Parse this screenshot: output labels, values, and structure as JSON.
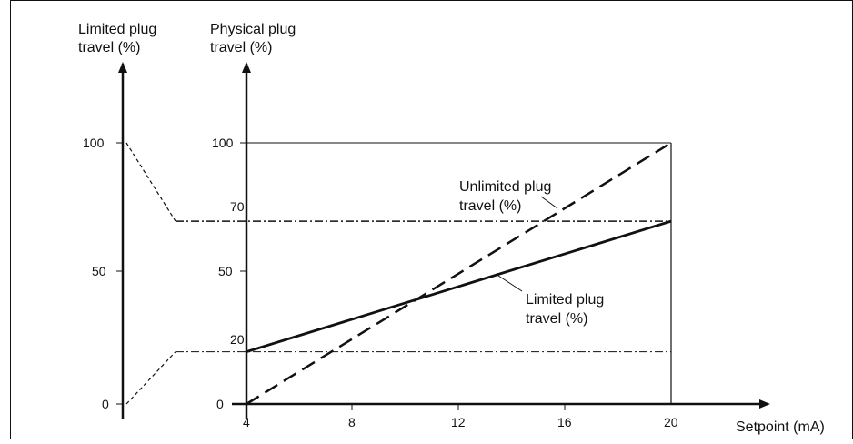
{
  "chart_data": {
    "type": "line",
    "left_axis": {
      "title_lines": [
        "Limited plug",
        "travel (%)"
      ],
      "ticks": [
        "100",
        "50",
        "0"
      ]
    },
    "main_axis": {
      "title_lines": [
        "Physical plug",
        "travel (%)"
      ],
      "ticks": [
        "100",
        "70",
        "50",
        "20",
        "0"
      ],
      "ylim": [
        0,
        100
      ]
    },
    "x_axis": {
      "label": "Setpoint (mA)",
      "ticks": [
        "4",
        "8",
        "12",
        "16",
        "20"
      ],
      "xlim": [
        4,
        20
      ]
    },
    "series": [
      {
        "name_lines": [
          "Unlimited plug",
          "travel (%)"
        ],
        "style": "dashed",
        "points": [
          [
            4,
            0
          ],
          [
            20,
            100
          ]
        ]
      },
      {
        "name_lines": [
          "Limited plug",
          "travel (%)"
        ],
        "style": "solid",
        "points": [
          [
            4,
            20
          ],
          [
            20,
            70
          ]
        ]
      }
    ],
    "limit_lines": [
      {
        "value": 70,
        "style": "dash-dot"
      },
      {
        "value": 20,
        "style": "dash-dot"
      }
    ],
    "mapping": {
      "description_free": true,
      "from_left": [
        [
          100,
          70
        ],
        [
          0,
          20
        ]
      ]
    }
  }
}
